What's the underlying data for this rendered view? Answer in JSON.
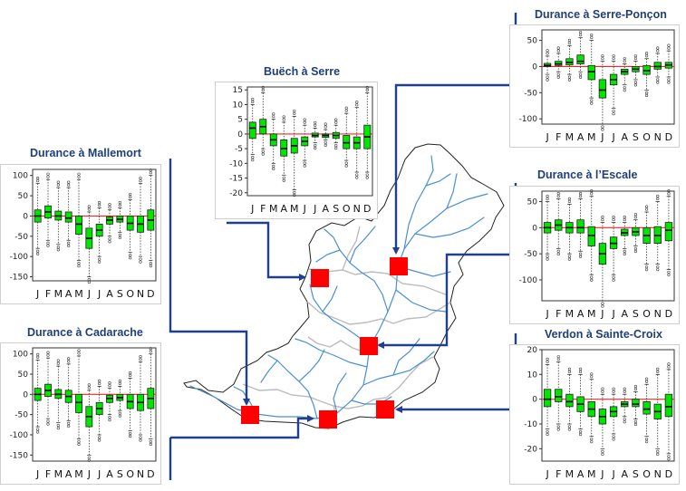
{
  "colors": {
    "box": "#00e600",
    "zero": "#ff2222",
    "station": "#ff0000",
    "link": "#1f3f8f",
    "river": "#4a8fd6",
    "title": "#1f3f7a"
  },
  "months": [
    "J",
    "F",
    "M",
    "A",
    "M",
    "J",
    "J",
    "A",
    "S",
    "O",
    "N",
    "D"
  ],
  "stations": [
    {
      "id": "buech",
      "title": "Buëch à Serre",
      "yticks": [
        15,
        10,
        5,
        0,
        -5,
        -10,
        -15,
        -20
      ],
      "ylim": [
        -21,
        16
      ],
      "boxes": [
        {
          "q1": -1.5,
          "med": 2,
          "q3": 4,
          "lo": -7,
          "hi": 10
        },
        {
          "q1": 0,
          "med": 2.5,
          "q3": 5,
          "lo": -5,
          "hi": 14
        },
        {
          "q1": -4,
          "med": -2,
          "q3": 0,
          "lo": -10,
          "hi": 5
        },
        {
          "q1": -7.5,
          "med": -5,
          "q3": -2,
          "lo": -14,
          "hi": 4
        },
        {
          "q1": -6.5,
          "med": -4,
          "q3": -1.5,
          "lo": -19,
          "hi": 6
        },
        {
          "q1": -4,
          "med": -2.5,
          "q3": -1,
          "lo": -9,
          "hi": 3
        },
        {
          "q1": -1,
          "med": -0.5,
          "q3": 0.3,
          "lo": -3,
          "hi": 2
        },
        {
          "q1": -1.2,
          "med": -0.5,
          "q3": 0,
          "lo": -2,
          "hi": 1.5
        },
        {
          "q1": -1.5,
          "med": -0.5,
          "q3": 0.5,
          "lo": -3,
          "hi": 3
        },
        {
          "q1": -5,
          "med": -3,
          "q3": -0.5,
          "lo": -9,
          "hi": 7
        },
        {
          "q1": -5,
          "med": -3,
          "q3": -1,
          "lo": -13,
          "hi": 9
        },
        {
          "q1": -5,
          "med": -1,
          "q3": 3,
          "lo": -13,
          "hi": 14
        }
      ]
    },
    {
      "id": "serreponcon",
      "title": "Durance à Serre-Ponçon",
      "yticks": [
        50,
        0,
        -50,
        -100
      ],
      "ylim": [
        -110,
        70
      ],
      "boxes": [
        {
          "q1": 0,
          "med": 2,
          "q3": 6,
          "lo": -15,
          "hi": 20
        },
        {
          "q1": 2,
          "med": 5,
          "q3": 10,
          "lo": -10,
          "hi": 25
        },
        {
          "q1": 3,
          "med": 8,
          "q3": 15,
          "lo": -15,
          "hi": 40
        },
        {
          "q1": 5,
          "med": 10,
          "q3": 22,
          "lo": -10,
          "hi": 55
        },
        {
          "q1": -25,
          "med": -10,
          "q3": 2,
          "lo": -60,
          "hi": 50
        },
        {
          "q1": -60,
          "med": -45,
          "q3": -25,
          "lo": -110,
          "hi": 10
        },
        {
          "q1": -35,
          "med": -25,
          "q3": -15,
          "lo": -80,
          "hi": 10
        },
        {
          "q1": -15,
          "med": -10,
          "q3": -5,
          "lo": -35,
          "hi": 5
        },
        {
          "q1": -10,
          "med": -5,
          "q3": 0,
          "lo": -25,
          "hi": 10
        },
        {
          "q1": -15,
          "med": -8,
          "q3": 2,
          "lo": -45,
          "hi": 15
        },
        {
          "q1": -5,
          "med": 0,
          "q3": 8,
          "lo": -20,
          "hi": 25
        },
        {
          "q1": -3,
          "med": 3,
          "q3": 8,
          "lo": -20,
          "hi": 30
        }
      ]
    },
    {
      "id": "mallemort",
      "title": "Durance à Mallemort",
      "yticks": [
        100,
        50,
        0,
        -50,
        -100,
        -150
      ],
      "ylim": [
        -160,
        115
      ],
      "boxes": [
        {
          "q1": -15,
          "med": 0,
          "q3": 15,
          "lo": -80,
          "hi": 80
        },
        {
          "q1": -5,
          "med": 10,
          "q3": 25,
          "lo": -60,
          "hi": 90
        },
        {
          "q1": -10,
          "med": 0,
          "q3": 12,
          "lo": -70,
          "hi": 70
        },
        {
          "q1": -15,
          "med": -5,
          "q3": 10,
          "lo": -60,
          "hi": 70
        },
        {
          "q1": -45,
          "med": -20,
          "q3": 0,
          "lo": -110,
          "hi": 90
        },
        {
          "q1": -80,
          "med": -55,
          "q3": -30,
          "lo": -150,
          "hi": 10
        },
        {
          "q1": -50,
          "med": -35,
          "q3": -20,
          "lo": -100,
          "hi": 20
        },
        {
          "q1": -20,
          "med": -10,
          "q3": -2,
          "lo": -50,
          "hi": 15
        },
        {
          "q1": -15,
          "med": -8,
          "q3": 0,
          "lo": -40,
          "hi": 20
        },
        {
          "q1": -35,
          "med": -18,
          "q3": 0,
          "lo": -90,
          "hi": 40
        },
        {
          "q1": -40,
          "med": -20,
          "q3": 0,
          "lo": -100,
          "hi": 80
        },
        {
          "q1": -35,
          "med": -10,
          "q3": 15,
          "lo": -110,
          "hi": 100
        }
      ]
    },
    {
      "id": "escale",
      "title": "Durance à l’Escale",
      "yticks": [
        50,
        0,
        -50,
        -100
      ],
      "ylim": [
        -140,
        70
      ],
      "boxes": [
        {
          "q1": -10,
          "med": 0,
          "q3": 10,
          "lo": -50,
          "hi": 50
        },
        {
          "q1": -5,
          "med": 5,
          "q3": 15,
          "lo": -40,
          "hi": 55
        },
        {
          "q1": -10,
          "med": 0,
          "q3": 10,
          "lo": -50,
          "hi": 45
        },
        {
          "q1": -10,
          "med": 0,
          "q3": 15,
          "lo": -45,
          "hi": 55
        },
        {
          "q1": -35,
          "med": -15,
          "q3": 2,
          "lo": -90,
          "hi": 60
        },
        {
          "q1": -70,
          "med": -50,
          "q3": -30,
          "lo": -140,
          "hi": 10
        },
        {
          "q1": -40,
          "med": -30,
          "q3": -18,
          "lo": -90,
          "hi": 10
        },
        {
          "q1": -15,
          "med": -10,
          "q3": -3,
          "lo": -40,
          "hi": 10
        },
        {
          "q1": -15,
          "med": -8,
          "q3": 0,
          "lo": -35,
          "hi": 15
        },
        {
          "q1": -30,
          "med": -15,
          "q3": 0,
          "lo": -70,
          "hi": 30
        },
        {
          "q1": -30,
          "med": -15,
          "q3": 2,
          "lo": -70,
          "hi": 50
        },
        {
          "q1": -25,
          "med": -5,
          "q3": 10,
          "lo": -80,
          "hi": 60
        }
      ]
    },
    {
      "id": "cadarache",
      "title": "Durance à Cadarache",
      "yticks": [
        100,
        50,
        0,
        -50,
        -100,
        -150
      ],
      "ylim": [
        -165,
        115
      ],
      "boxes": [
        {
          "q1": -15,
          "med": 0,
          "q3": 15,
          "lo": -80,
          "hi": 85
        },
        {
          "q1": -5,
          "med": 10,
          "q3": 25,
          "lo": -60,
          "hi": 90
        },
        {
          "q1": -10,
          "med": 0,
          "q3": 12,
          "lo": -70,
          "hi": 70
        },
        {
          "q1": -20,
          "med": -5,
          "q3": 10,
          "lo": -65,
          "hi": 75
        },
        {
          "q1": -45,
          "med": -20,
          "q3": 0,
          "lo": -110,
          "hi": 95
        },
        {
          "q1": -80,
          "med": -55,
          "q3": -30,
          "lo": -150,
          "hi": 10
        },
        {
          "q1": -50,
          "med": -35,
          "q3": -20,
          "lo": -100,
          "hi": 20
        },
        {
          "q1": -20,
          "med": -10,
          "q3": -2,
          "lo": -50,
          "hi": 15
        },
        {
          "q1": -15,
          "med": -8,
          "q3": 0,
          "lo": -40,
          "hi": 20
        },
        {
          "q1": -35,
          "med": -18,
          "q3": 0,
          "lo": -90,
          "hi": 40
        },
        {
          "q1": -40,
          "med": -20,
          "q3": 0,
          "lo": -100,
          "hi": 80
        },
        {
          "q1": -35,
          "med": -10,
          "q3": 15,
          "lo": -110,
          "hi": 100
        }
      ]
    },
    {
      "id": "verdon",
      "title": "Verdon à Sainte-Croix",
      "yticks": [
        20,
        10,
        0,
        -10,
        -20
      ],
      "ylim": [
        -25,
        20
      ],
      "boxes": [
        {
          "q1": -3,
          "med": 0,
          "q3": 4,
          "lo": -12,
          "hi": 14
        },
        {
          "q1": -1,
          "med": 1,
          "q3": 4,
          "lo": -10,
          "hi": 15
        },
        {
          "q1": -3,
          "med": -1,
          "q3": 2,
          "lo": -10,
          "hi": 10
        },
        {
          "q1": -5,
          "med": -2,
          "q3": 1,
          "lo": -12,
          "hi": 10
        },
        {
          "q1": -7,
          "med": -4,
          "q3": -1,
          "lo": -15,
          "hi": 8
        },
        {
          "q1": -10,
          "med": -7,
          "q3": -4,
          "lo": -20,
          "hi": 2
        },
        {
          "q1": -7,
          "med": -5,
          "q3": -3,
          "lo": -14,
          "hi": 2
        },
        {
          "q1": -3,
          "med": -2,
          "q3": -1,
          "lo": -7,
          "hi": 2
        },
        {
          "q1": -3,
          "med": -2,
          "q3": 0,
          "lo": -8,
          "hi": 3
        },
        {
          "q1": -6,
          "med": -4,
          "q3": -1,
          "lo": -15,
          "hi": 6
        },
        {
          "q1": -8,
          "med": -5,
          "q3": -2,
          "lo": -20,
          "hi": 10
        },
        {
          "q1": -7,
          "med": -3,
          "q3": 2,
          "lo": -22,
          "hi": 12
        }
      ]
    }
  ]
}
